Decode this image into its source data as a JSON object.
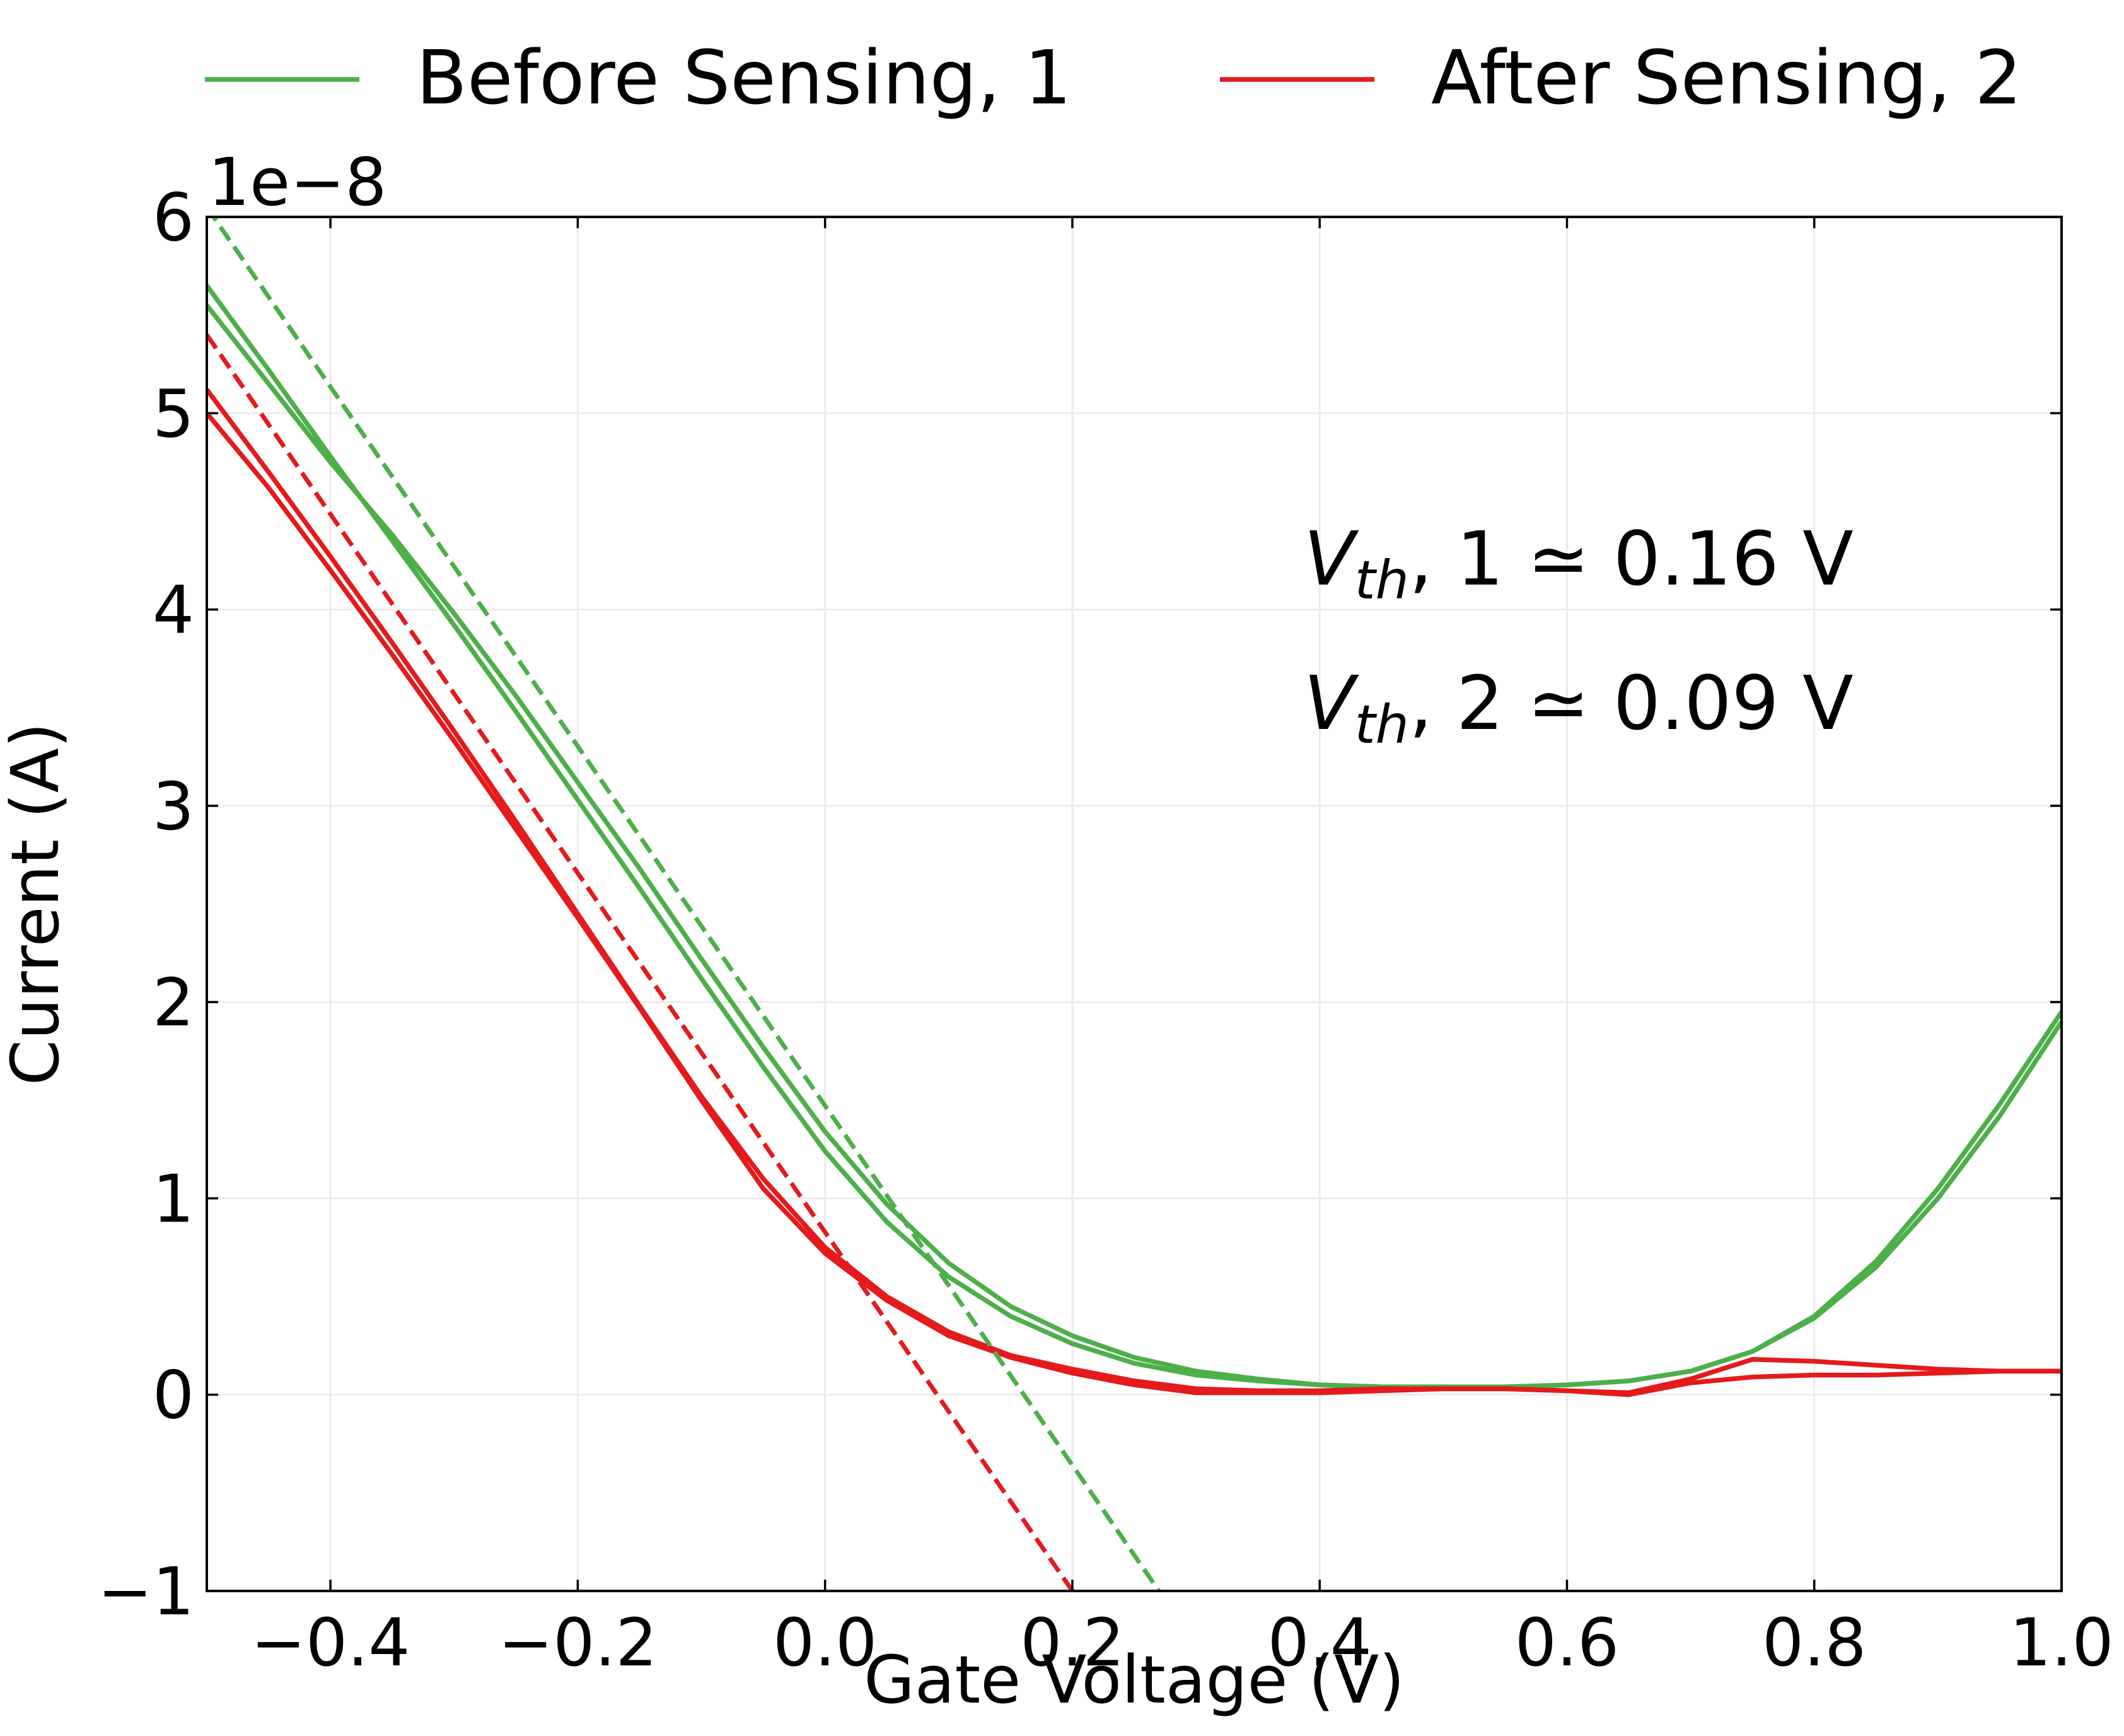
{
  "chart_data": {
    "type": "line",
    "title": "",
    "xlabel": "Gate Voltage (V)",
    "ylabel": "Current (A)",
    "y_offset_label": "1e−8",
    "xlim": [
      -0.5,
      1.0
    ],
    "ylim": [
      -1,
      6
    ],
    "y_scale_factor": 1e-08,
    "grid": true,
    "legend_position": "top-outside",
    "x_ticks": [
      -0.4,
      -0.2,
      0.0,
      0.2,
      0.4,
      0.6,
      0.8,
      1.0
    ],
    "x_tick_labels": [
      "−0.4",
      "−0.2",
      "0.0",
      "0.2",
      "0.4",
      "0.6",
      "0.8",
      "1.0"
    ],
    "y_ticks": [
      -1,
      0,
      1,
      2,
      3,
      4,
      5,
      6
    ],
    "y_tick_labels": [
      "−1",
      "0",
      "1",
      "2",
      "3",
      "4",
      "5",
      "6"
    ],
    "series": [
      {
        "name": "Before Sensing, 1",
        "color": "#4daf4a",
        "style": "solid",
        "x": [
          -0.5,
          -0.45,
          -0.4,
          -0.35,
          -0.3,
          -0.25,
          -0.2,
          -0.15,
          -0.1,
          -0.05,
          0.0,
          0.05,
          0.1,
          0.15,
          0.2,
          0.25,
          0.3,
          0.35,
          0.4,
          0.45,
          0.5,
          0.55,
          0.6,
          0.65,
          0.7,
          0.75,
          0.8,
          0.85,
          0.9,
          0.95,
          1.0
        ],
        "y": [
          5.65,
          5.22,
          4.78,
          4.35,
          3.92,
          3.48,
          3.03,
          2.58,
          2.12,
          1.67,
          1.24,
          0.88,
          0.6,
          0.4,
          0.26,
          0.16,
          0.1,
          0.07,
          0.05,
          0.04,
          0.04,
          0.04,
          0.05,
          0.07,
          0.12,
          0.22,
          0.4,
          0.68,
          1.05,
          1.48,
          1.95
        ]
      },
      {
        "name": "",
        "color": "#4daf4a",
        "style": "solid",
        "x": [
          -0.5,
          -0.45,
          -0.4,
          -0.35,
          -0.3,
          -0.25,
          -0.2,
          -0.15,
          -0.1,
          -0.05,
          0.0,
          0.05,
          0.1,
          0.15,
          0.2,
          0.25,
          0.3,
          0.35,
          0.4,
          0.45,
          0.5,
          0.55,
          0.6,
          0.65,
          0.7,
          0.75,
          0.8,
          0.85,
          0.9,
          0.95,
          1.0
        ],
        "y": [
          5.55,
          5.15,
          4.75,
          4.38,
          3.98,
          3.56,
          3.12,
          2.68,
          2.22,
          1.77,
          1.34,
          0.97,
          0.67,
          0.45,
          0.3,
          0.19,
          0.12,
          0.08,
          0.05,
          0.04,
          0.04,
          0.04,
          0.05,
          0.07,
          0.12,
          0.22,
          0.39,
          0.65,
          1.0,
          1.42,
          1.9
        ]
      },
      {
        "name": "After Sensing, 2",
        "color": "#e41a1c",
        "style": "solid",
        "x": [
          -0.5,
          -0.45,
          -0.4,
          -0.35,
          -0.3,
          -0.25,
          -0.2,
          -0.15,
          -0.1,
          -0.05,
          0.0,
          0.05,
          0.1,
          0.15,
          0.2,
          0.25,
          0.3,
          0.35,
          0.4,
          0.45,
          0.5,
          0.55,
          0.6,
          0.65,
          0.7,
          0.75,
          0.8,
          0.85,
          0.9,
          0.95,
          1.0
        ],
        "y": [
          5.12,
          4.7,
          4.27,
          3.83,
          3.38,
          2.92,
          2.45,
          1.98,
          1.52,
          1.1,
          0.75,
          0.5,
          0.32,
          0.2,
          0.13,
          0.07,
          0.03,
          0.02,
          0.02,
          0.03,
          0.03,
          0.03,
          0.02,
          0.01,
          0.08,
          0.18,
          0.17,
          0.15,
          0.13,
          0.12,
          0.12
        ]
      },
      {
        "name": "",
        "color": "#e41a1c",
        "style": "solid",
        "x": [
          -0.5,
          -0.45,
          -0.4,
          -0.35,
          -0.3,
          -0.25,
          -0.2,
          -0.15,
          -0.1,
          -0.05,
          0.0,
          0.05,
          0.1,
          0.15,
          0.2,
          0.25,
          0.3,
          0.35,
          0.4,
          0.45,
          0.5,
          0.55,
          0.6,
          0.65,
          0.7,
          0.75,
          0.8,
          0.85,
          0.9,
          0.95,
          1.0
        ],
        "y": [
          5.0,
          4.62,
          4.2,
          3.77,
          3.33,
          2.88,
          2.43,
          1.97,
          1.5,
          1.05,
          0.72,
          0.48,
          0.3,
          0.19,
          0.11,
          0.05,
          0.01,
          0.01,
          0.01,
          0.02,
          0.03,
          0.03,
          0.02,
          0.0,
          0.06,
          0.09,
          0.1,
          0.1,
          0.11,
          0.12,
          0.12
        ]
      },
      {
        "name": "",
        "color": "#4daf4a",
        "style": "dashed",
        "x": [
          -0.5,
          0.27
        ],
        "y": [
          6.05,
          -1.0
        ]
      },
      {
        "name": "",
        "color": "#e41a1c",
        "style": "dashed",
        "x": [
          -0.5,
          0.2
        ],
        "y": [
          5.4,
          -1.0
        ]
      }
    ],
    "annotations": [
      {
        "base": "V",
        "subscript": "th",
        "suffix": ", 1  ≃ 0.16 V"
      },
      {
        "base": "V",
        "subscript": "th",
        "suffix": ", 2  ≃ 0.09 V"
      }
    ],
    "legend": [
      {
        "label": "Before Sensing, 1",
        "color": "#4daf4a"
      },
      {
        "label": "After Sensing, 2",
        "color": "#e41a1c"
      }
    ]
  }
}
